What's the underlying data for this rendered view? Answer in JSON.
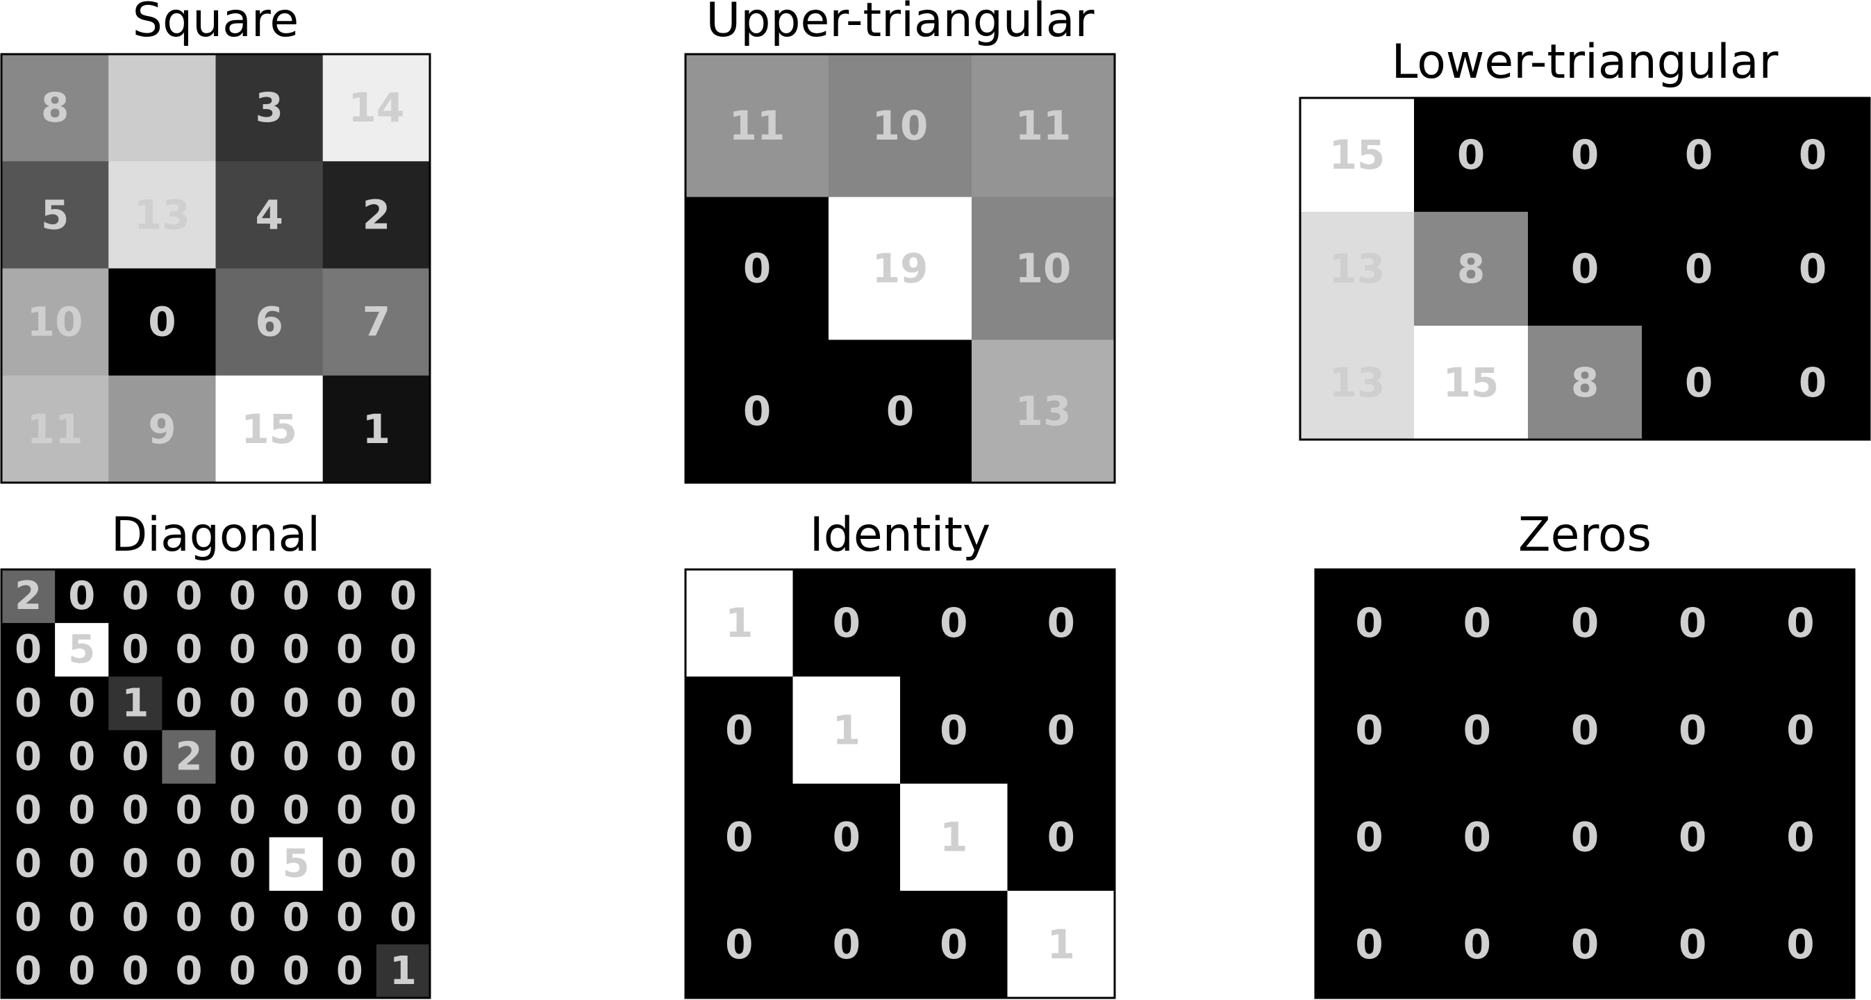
{
  "chart_data": [
    {
      "type": "heatmap",
      "title": "Square",
      "colormap": "gray",
      "values": [
        [
          8,
          null,
          3,
          14
        ],
        [
          5,
          13,
          4,
          2
        ],
        [
          10,
          0,
          6,
          7
        ],
        [
          11,
          9,
          15,
          1
        ]
      ],
      "shading": [
        [
          8,
          12,
          3,
          14
        ],
        [
          5,
          13,
          4,
          2
        ],
        [
          10,
          0,
          6,
          7
        ],
        [
          11,
          9,
          15,
          1
        ]
      ],
      "vmin": 0,
      "vmax": 15
    },
    {
      "type": "heatmap",
      "title": "Upper-triangular",
      "colormap": "gray",
      "values": [
        [
          11,
          10,
          11
        ],
        [
          0,
          19,
          10
        ],
        [
          0,
          0,
          13
        ]
      ],
      "vmin": 0,
      "vmax": 19
    },
    {
      "type": "heatmap",
      "title": "Lower-triangular",
      "colormap": "gray",
      "values": [
        [
          15,
          0,
          0,
          0,
          0
        ],
        [
          13,
          8,
          0,
          0,
          0
        ],
        [
          13,
          15,
          8,
          0,
          0
        ]
      ],
      "vmin": 0,
      "vmax": 15
    },
    {
      "type": "heatmap",
      "title": "Diagonal",
      "colormap": "gray",
      "values": [
        [
          2,
          0,
          0,
          0,
          0,
          0,
          0,
          0
        ],
        [
          0,
          5,
          0,
          0,
          0,
          0,
          0,
          0
        ],
        [
          0,
          0,
          1,
          0,
          0,
          0,
          0,
          0
        ],
        [
          0,
          0,
          0,
          2,
          0,
          0,
          0,
          0
        ],
        [
          0,
          0,
          0,
          0,
          0,
          0,
          0,
          0
        ],
        [
          0,
          0,
          0,
          0,
          0,
          5,
          0,
          0
        ],
        [
          0,
          0,
          0,
          0,
          0,
          0,
          0,
          0
        ],
        [
          0,
          0,
          0,
          0,
          0,
          0,
          0,
          1
        ]
      ],
      "vmin": 0,
      "vmax": 5
    },
    {
      "type": "heatmap",
      "title": "Identity",
      "colormap": "gray",
      "values": [
        [
          1,
          0,
          0,
          0
        ],
        [
          0,
          1,
          0,
          0
        ],
        [
          0,
          0,
          1,
          0
        ],
        [
          0,
          0,
          0,
          1
        ]
      ],
      "vmin": 0,
      "vmax": 1
    },
    {
      "type": "heatmap",
      "title": "Zeros",
      "colormap": "gray",
      "values": [
        [
          0,
          0,
          0,
          0,
          0
        ],
        [
          0,
          0,
          0,
          0,
          0
        ],
        [
          0,
          0,
          0,
          0,
          0
        ],
        [
          0,
          0,
          0,
          0,
          0
        ]
      ],
      "vmin": 0,
      "vmax": 1
    }
  ]
}
